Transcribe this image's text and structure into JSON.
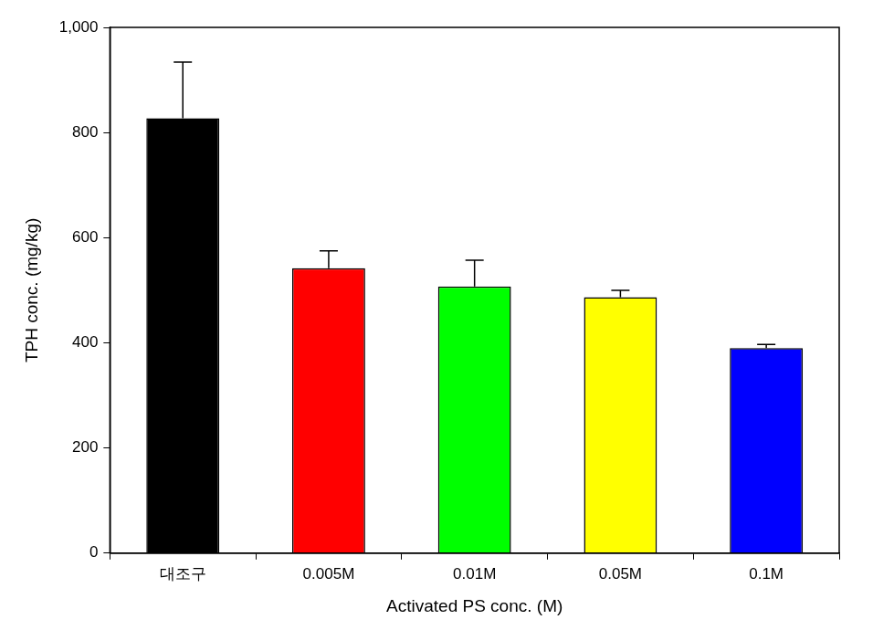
{
  "chart_data": {
    "type": "bar",
    "categories": [
      "대조구",
      "0.005M",
      "0.01M",
      "0.05M",
      "0.1M"
    ],
    "values": [
      827,
      542,
      507,
      487,
      390
    ],
    "errors": [
      107,
      33,
      50,
      13,
      7
    ],
    "colors": [
      "#000000",
      "#ff0000",
      "#00ff00",
      "#ffff00",
      "#0000ff"
    ],
    "x_label": "Activated PS conc. (M)",
    "y_label": "TPH conc. (mg/kg)",
    "ylim": [
      0,
      1000
    ],
    "yticks": [
      0,
      200,
      400,
      600,
      800,
      1000
    ],
    "grid": false
  }
}
